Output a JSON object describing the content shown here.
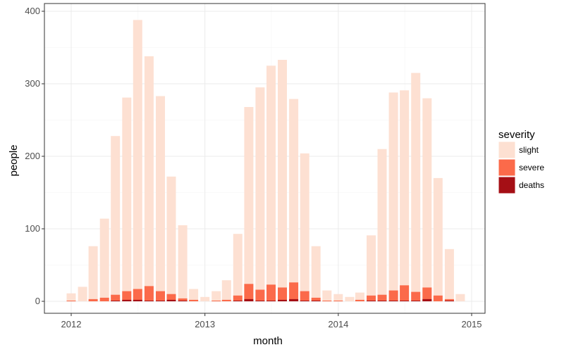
{
  "chart_data": {
    "type": "bar",
    "stacked": false,
    "title": "",
    "xlabel": "month",
    "ylabel": "people",
    "ylim": [
      0,
      400
    ],
    "yticks": [
      "0",
      "100",
      "200",
      "300",
      "400"
    ],
    "xticks": [
      "2012",
      "2013",
      "2014",
      "2015"
    ],
    "grid": true,
    "legend": {
      "title": "severity",
      "placement": "right",
      "entries": [
        "slight",
        "severe",
        "deaths"
      ]
    },
    "colors": {
      "slight": "#fde0d2",
      "severe": "#fb6a4a",
      "deaths": "#a50f15"
    },
    "months": [
      "2012-01",
      "2012-02",
      "2012-03",
      "2012-04",
      "2012-05",
      "2012-06",
      "2012-07",
      "2012-08",
      "2012-09",
      "2012-10",
      "2012-11",
      "2012-12",
      "2013-01",
      "2013-02",
      "2013-03",
      "2013-04",
      "2013-05",
      "2013-06",
      "2013-07",
      "2013-08",
      "2013-09",
      "2013-10",
      "2013-11",
      "2013-12",
      "2014-01",
      "2014-02",
      "2014-03",
      "2014-04",
      "2014-05",
      "2014-06",
      "2014-07",
      "2014-08",
      "2014-09",
      "2014-10",
      "2014-11",
      "2014-12"
    ],
    "series": [
      {
        "name": "slight",
        "values": [
          11,
          20,
          76,
          114,
          228,
          281,
          388,
          338,
          283,
          172,
          105,
          17,
          6,
          14,
          29,
          93,
          268,
          295,
          325,
          333,
          279,
          204,
          76,
          15,
          10,
          6,
          12,
          91,
          210,
          288,
          291,
          315,
          280,
          170,
          72,
          10
        ]
      },
      {
        "name": "severe",
        "values": [
          1,
          0,
          3,
          5,
          9,
          14,
          17,
          21,
          14,
          10,
          4,
          2,
          0,
          1,
          2,
          8,
          24,
          16,
          23,
          19,
          26,
          14,
          5,
          1,
          1,
          0,
          2,
          8,
          9,
          15,
          22,
          13,
          19,
          8,
          3,
          0
        ]
      },
      {
        "name": "deaths",
        "values": [
          0,
          0,
          0,
          0,
          1,
          2,
          2,
          1,
          1,
          2,
          1,
          0,
          0,
          0,
          0,
          1,
          3,
          1,
          1,
          2,
          3,
          1,
          1,
          0,
          0,
          0,
          0,
          1,
          1,
          1,
          1,
          1,
          3,
          0,
          1,
          0
        ]
      }
    ]
  }
}
